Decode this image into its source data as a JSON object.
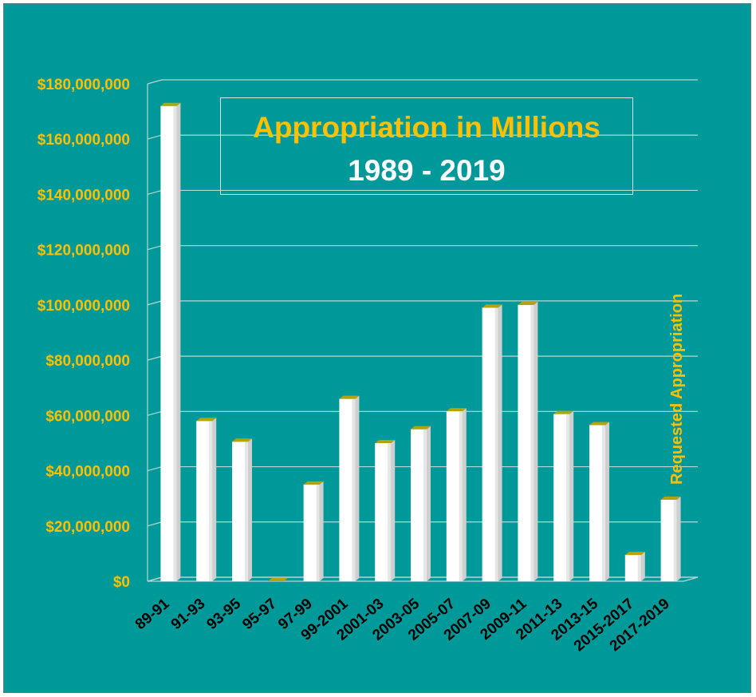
{
  "chart_data": {
    "type": "bar",
    "title": "Appropriation in Millions",
    "subtitle": "1989 - 2019",
    "categories": [
      "89-91",
      "91-93",
      "93-95",
      "95-97",
      "97-99",
      "99-2001",
      "2001-03",
      "2003-05",
      "2005-07",
      "2007-09",
      "2009-11",
      "2011-13",
      "2013-15",
      "2015-2017",
      "2017-2019"
    ],
    "values": [
      172000000,
      58000000,
      50500000,
      0,
      35000000,
      66000000,
      50000000,
      55000000,
      61500000,
      99000000,
      100000000,
      60500000,
      56500000,
      9500000,
      29500000
    ],
    "ytick_labels": [
      "$0",
      "$20,000,000",
      "$40,000,000",
      "$60,000,000",
      "$80,000,000",
      "$100,000,000",
      "$120,000,000",
      "$140,000,000",
      "$160,000,000",
      "$180,000,000"
    ],
    "ylim": [
      0,
      180000000
    ],
    "grid": true,
    "annotation": "Requested Appropriation",
    "colors": {
      "background": "#009999",
      "bar_face": "#ffffff",
      "bar_top": "#b5a30a",
      "gridline": "#b8d6d6",
      "ytick_text": "#ffc000",
      "xtick_text": "#000000",
      "title": "#ffc000",
      "subtitle": "#ffffff"
    }
  }
}
